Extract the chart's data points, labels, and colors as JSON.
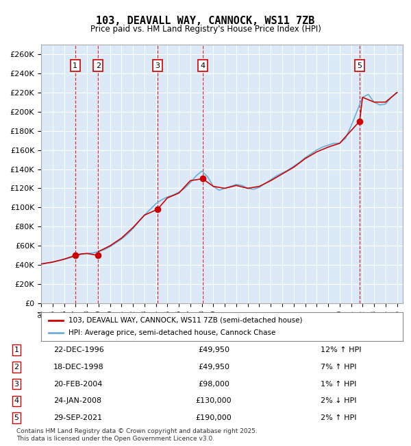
{
  "title": "103, DEAVALL WAY, CANNOCK, WS11 7ZB",
  "subtitle": "Price paid vs. HM Land Registry's House Price Index (HPI)",
  "ylabel": "",
  "ylim": [
    0,
    270000
  ],
  "yticks": [
    0,
    20000,
    40000,
    60000,
    80000,
    100000,
    120000,
    140000,
    160000,
    180000,
    200000,
    220000,
    240000,
    260000
  ],
  "xlim_start": 1994.0,
  "xlim_end": 2025.5,
  "bg_color": "#ffffff",
  "plot_bg_color": "#dce9f7",
  "grid_color": "#ffffff",
  "hpi_color": "#6baed6",
  "price_color": "#cc0000",
  "sale_marker_color": "#cc0000",
  "legend_label_price": "103, DEAVALL WAY, CANNOCK, WS11 7ZB (semi-detached house)",
  "legend_label_hpi": "HPI: Average price, semi-detached house, Cannock Chase",
  "footer": "Contains HM Land Registry data © Crown copyright and database right 2025.\nThis data is licensed under the Open Government Licence v3.0.",
  "sales": [
    {
      "num": 1,
      "date": "22-DEC-1996",
      "year": 1996.97,
      "price": 49950,
      "pct": "12%",
      "dir": "↑"
    },
    {
      "num": 2,
      "date": "18-DEC-1998",
      "year": 1998.97,
      "price": 49950,
      "pct": "7%",
      "dir": "↑"
    },
    {
      "num": 3,
      "date": "20-FEB-2004",
      "year": 2004.13,
      "price": 98000,
      "pct": "1%",
      "dir": "↑"
    },
    {
      "num": 4,
      "date": "24-JAN-2008",
      "year": 2008.07,
      "price": 130000,
      "pct": "2%",
      "dir": "↓"
    },
    {
      "num": 5,
      "date": "29-SEP-2021",
      "year": 2021.74,
      "price": 190000,
      "pct": "2%",
      "dir": "↑"
    }
  ],
  "hpi_years": [
    1994,
    1994.5,
    1995,
    1995.5,
    1996,
    1996.5,
    1997,
    1997.5,
    1998,
    1998.5,
    1999,
    1999.5,
    2000,
    2000.5,
    2001,
    2001.5,
    2002,
    2002.5,
    2003,
    2003.5,
    2004,
    2004.5,
    2005,
    2005.5,
    2006,
    2006.5,
    2007,
    2007.5,
    2008,
    2008.5,
    2009,
    2009.5,
    2010,
    2010.5,
    2011,
    2011.5,
    2012,
    2012.5,
    2013,
    2013.5,
    2014,
    2014.5,
    2015,
    2015.5,
    2016,
    2016.5,
    2017,
    2017.5,
    2018,
    2018.5,
    2019,
    2019.5,
    2020,
    2020.5,
    2021,
    2021.5,
    2022,
    2022.5,
    2023,
    2023.5,
    2024,
    2024.5,
    2025
  ],
  "hpi_values": [
    41000,
    42000,
    43000,
    44500,
    46000,
    47500,
    49000,
    51000,
    52000,
    52500,
    54000,
    56000,
    59000,
    63000,
    67000,
    72000,
    78000,
    85000,
    92000,
    98000,
    104000,
    108000,
    111000,
    113000,
    116000,
    120000,
    126000,
    133000,
    138000,
    132000,
    122000,
    118000,
    120000,
    122000,
    124000,
    123000,
    120000,
    119000,
    121000,
    125000,
    129000,
    133000,
    136000,
    139000,
    143000,
    147000,
    152000,
    156000,
    160000,
    163000,
    165000,
    167000,
    167000,
    172000,
    185000,
    200000,
    215000,
    218000,
    210000,
    207000,
    208000,
    215000,
    220000
  ],
  "price_years": [
    1994,
    1995,
    1996,
    1996.97,
    1997,
    1997.5,
    1998,
    1998.97,
    1999,
    2000,
    2001,
    2002,
    2003,
    2004.13,
    2005,
    2006,
    2007,
    2008.07,
    2009,
    2010,
    2011,
    2012,
    2013,
    2014,
    2015,
    2016,
    2017,
    2018,
    2019,
    2020,
    2021.74,
    2022,
    2023,
    2024,
    2025
  ],
  "price_values": [
    41000,
    43000,
    46000,
    49950,
    50500,
    51500,
    52000,
    49950,
    54000,
    60000,
    68000,
    79000,
    92000,
    98000,
    110000,
    115000,
    128000,
    130000,
    122000,
    120000,
    123000,
    120000,
    122000,
    128000,
    135000,
    142000,
    151000,
    158000,
    163000,
    167000,
    190000,
    215000,
    210000,
    210000,
    220000
  ]
}
